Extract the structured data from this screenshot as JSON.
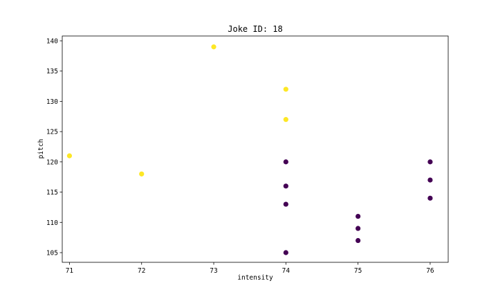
{
  "chart_data": {
    "type": "scatter",
    "title": "Joke ID: 18",
    "xlabel": "intensity",
    "ylabel": "pitch",
    "xlim": [
      70.9,
      76.25
    ],
    "ylim": [
      103.4,
      140.8
    ],
    "xticks": [
      71,
      72,
      73,
      74,
      75,
      76
    ],
    "yticks": [
      105,
      110,
      115,
      120,
      125,
      130,
      135,
      140
    ],
    "grid": false,
    "colors": {
      "class_0": "#440154",
      "class_1": "#fde725"
    },
    "points": [
      {
        "x": 71,
        "y": 121,
        "class": 1
      },
      {
        "x": 72,
        "y": 118,
        "class": 1
      },
      {
        "x": 73,
        "y": 139,
        "class": 1
      },
      {
        "x": 74,
        "y": 132,
        "class": 1
      },
      {
        "x": 74,
        "y": 127,
        "class": 1
      },
      {
        "x": 74,
        "y": 120,
        "class": 0
      },
      {
        "x": 74,
        "y": 116,
        "class": 0
      },
      {
        "x": 74,
        "y": 113,
        "class": 0
      },
      {
        "x": 74,
        "y": 105,
        "class": 0
      },
      {
        "x": 75,
        "y": 111,
        "class": 0
      },
      {
        "x": 75,
        "y": 109,
        "class": 0
      },
      {
        "x": 75,
        "y": 107,
        "class": 0
      },
      {
        "x": 76,
        "y": 120,
        "class": 0
      },
      {
        "x": 76,
        "y": 117,
        "class": 0
      },
      {
        "x": 76,
        "y": 114,
        "class": 0
      }
    ]
  }
}
